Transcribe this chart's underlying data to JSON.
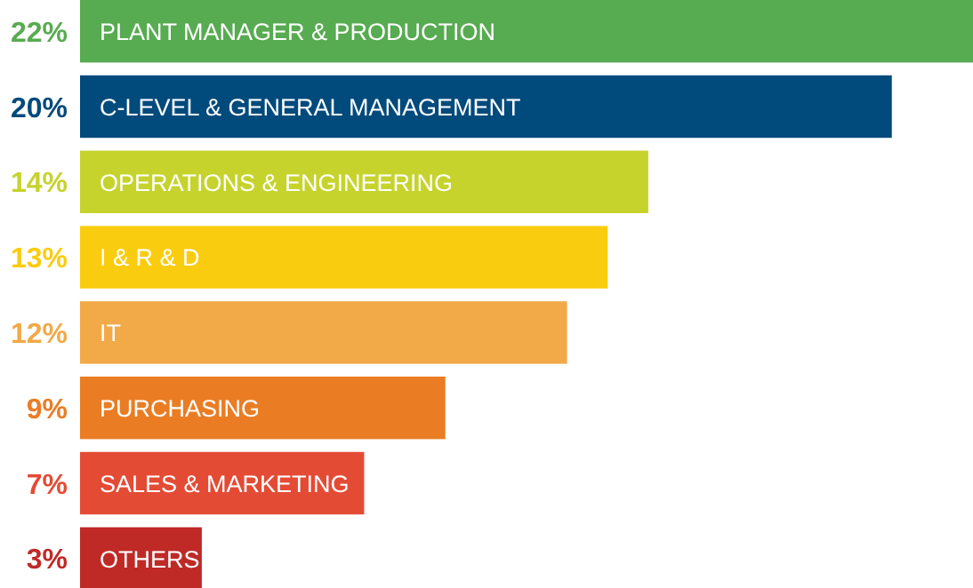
{
  "chart_data": {
    "type": "bar",
    "orientation": "horizontal",
    "data_labels": true,
    "categories": [
      "PLANT MANAGER & PRODUCTION",
      "C-LEVEL & GENERAL MANAGEMENT",
      "OPERATIONS & ENGINEERING",
      "I & R & D",
      "IT",
      "PURCHASING",
      "SALES & MARKETING",
      "OTHERS"
    ],
    "values": [
      22,
      20,
      14,
      13,
      12,
      9,
      7,
      3
    ],
    "value_labels": [
      "22%",
      "20%",
      "14%",
      "13%",
      "12%",
      "9%",
      "7%",
      "3%"
    ],
    "colors": [
      "#57ab50",
      "#004a7c",
      "#c6d32c",
      "#facc0f",
      "#f2a948",
      "#ea7d24",
      "#e44b35",
      "#bf2a27"
    ]
  }
}
